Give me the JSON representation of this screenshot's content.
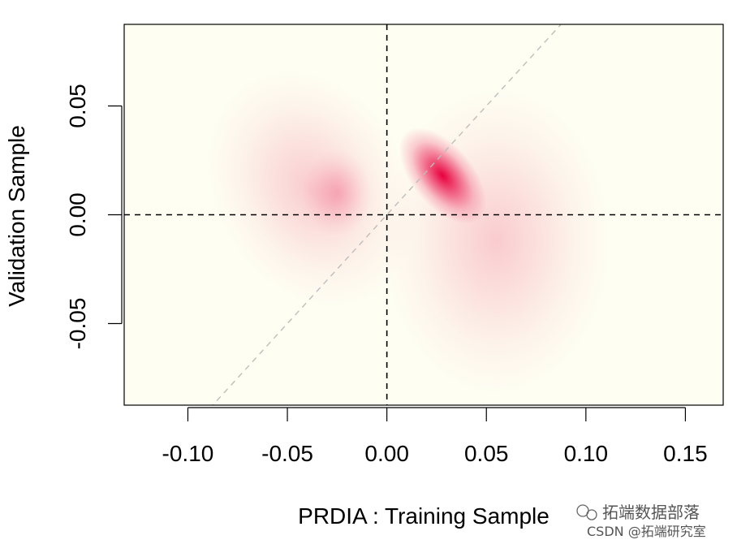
{
  "chart_data": {
    "type": "heatmap",
    "title": "",
    "xlabel": "PRDIA : Training Sample",
    "ylabel": "Validation Sample",
    "xlim": [
      -0.132,
      0.169
    ],
    "ylim": [
      -0.0875,
      0.0875
    ],
    "x_ticks": [
      -0.1,
      -0.05,
      0.0,
      0.05,
      0.1,
      0.15
    ],
    "x_tick_labels": [
      "-0.10",
      "-0.05",
      "0.00",
      "0.05",
      "0.10",
      "0.15"
    ],
    "y_ticks": [
      -0.05,
      0.0,
      0.05
    ],
    "y_tick_labels": [
      "-0.05",
      "0.00",
      "0.05"
    ],
    "reference_lines": [
      {
        "kind": "vertical",
        "x": 0,
        "style": "dashed",
        "color": "#000000"
      },
      {
        "kind": "horizontal",
        "y": 0,
        "style": "dashed",
        "color": "#000000"
      },
      {
        "kind": "diagonal",
        "slope": 1,
        "intercept": 0,
        "style": "dashed",
        "color": "#bdbdbd"
      }
    ],
    "density_blobs": [
      {
        "x": 0.028,
        "y": 0.018,
        "sx": 0.007,
        "sy": 0.012,
        "angle": -40,
        "peak": 1.0
      },
      {
        "x": 0.055,
        "y": -0.012,
        "sx": 0.026,
        "sy": 0.032,
        "angle": 0,
        "peak": 0.2
      },
      {
        "x": -0.038,
        "y": 0.012,
        "sx": 0.022,
        "sy": 0.026,
        "angle": -30,
        "peak": 0.2
      },
      {
        "x": -0.025,
        "y": 0.01,
        "sx": 0.008,
        "sy": 0.009,
        "angle": 0,
        "peak": 0.25
      }
    ],
    "colors": {
      "background": "#fefef3",
      "low": "#fdf9ee",
      "high": "#e8003d",
      "pale_yellow": "#fffbd0"
    },
    "grid": false,
    "legend": "none"
  },
  "watermark": {
    "line1": "拓端数据部落",
    "line2": "CSDN @拓端研究室"
  }
}
